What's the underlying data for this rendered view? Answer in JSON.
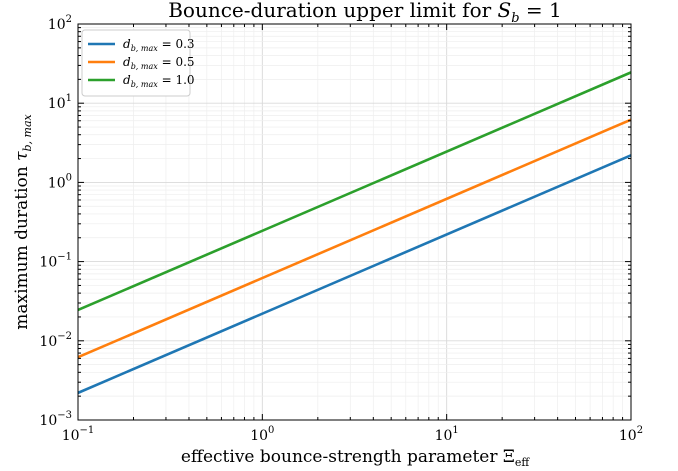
{
  "chart_data": {
    "type": "line",
    "title": "Bounce-duration upper limit for S_b = 1",
    "title_parts": {
      "main": "Bounce-duration upper limit for ",
      "var": "S",
      "sub": "b",
      "tail": " = 1"
    },
    "xlabel": "effective bounce-strength parameter Ξ_eff",
    "xlabel_parts": {
      "main": "effective bounce-strength parameter Ξ",
      "sub": "eff"
    },
    "ylabel": "maximum duration τ_b,max",
    "ylabel_parts": {
      "main": "maximum duration ",
      "var": "τ",
      "sub": "b, max"
    },
    "xscale": "log",
    "yscale": "log",
    "xlim": [
      0.1,
      100
    ],
    "ylim": [
      0.001,
      100
    ],
    "x_ticks": [
      {
        "value": 0.1,
        "base": "10",
        "exp": "−1"
      },
      {
        "value": 1,
        "base": "10",
        "exp": "0"
      },
      {
        "value": 10,
        "base": "10",
        "exp": "1"
      },
      {
        "value": 100,
        "base": "10",
        "exp": "2"
      }
    ],
    "y_ticks": [
      {
        "value": 0.001,
        "base": "10",
        "exp": "−3"
      },
      {
        "value": 0.01,
        "base": "10",
        "exp": "−2"
      },
      {
        "value": 0.1,
        "base": "10",
        "exp": "−1"
      },
      {
        "value": 1,
        "base": "10",
        "exp": "0"
      },
      {
        "value": 10,
        "base": "10",
        "exp": "1"
      },
      {
        "value": 100,
        "base": "10",
        "exp": "2"
      }
    ],
    "grid": true,
    "legend_position": "top-left",
    "series": [
      {
        "name": "d_b,max = 0.3",
        "label_parts": {
          "var": "d",
          "sub": "b, max",
          "tail": " = 0.3"
        },
        "color": "#1f77b4",
        "x": [
          0.1,
          100
        ],
        "y": [
          0.0022,
          2.2
        ]
      },
      {
        "name": "d_b,max = 0.5",
        "label_parts": {
          "var": "d",
          "sub": "b, max",
          "tail": " = 0.5"
        },
        "color": "#ff7f0e",
        "x": [
          0.1,
          100
        ],
        "y": [
          0.0062,
          6.2
        ]
      },
      {
        "name": "d_b,max = 1.0",
        "label_parts": {
          "var": "d",
          "sub": "b, max",
          "tail": " = 1.0"
        },
        "color": "#2ca02c",
        "x": [
          0.1,
          100
        ],
        "y": [
          0.0245,
          24.5
        ]
      }
    ]
  }
}
